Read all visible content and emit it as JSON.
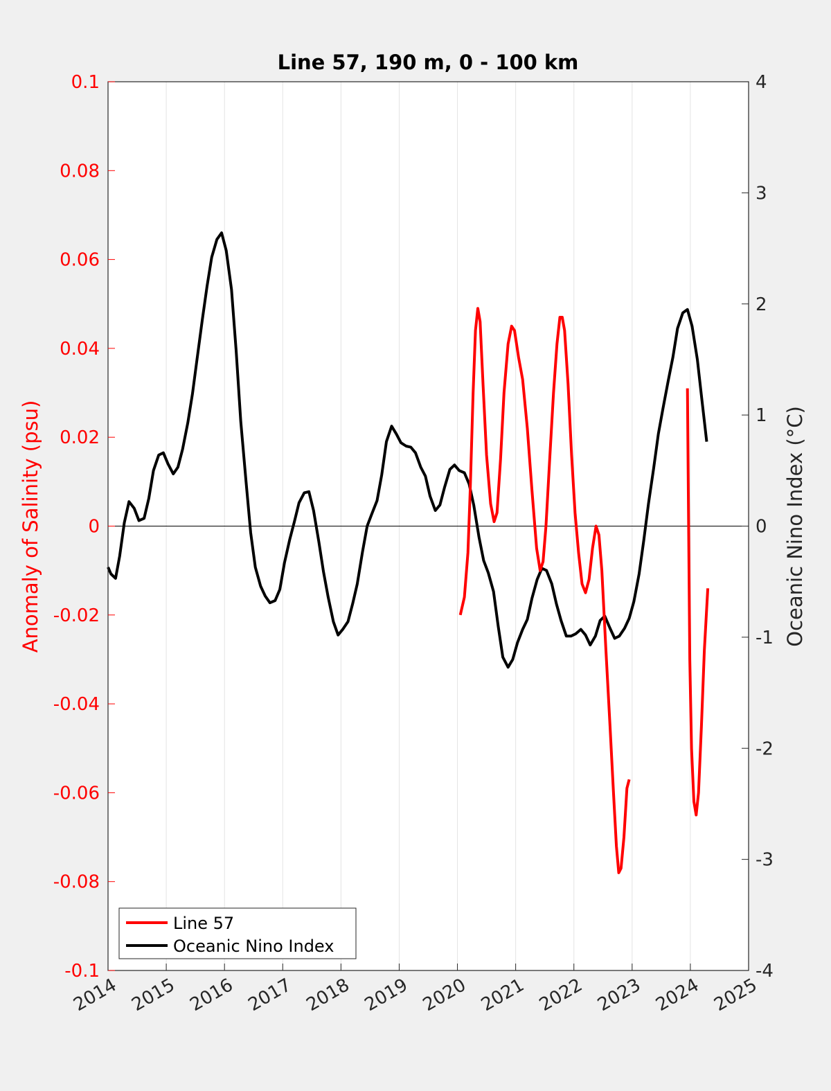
{
  "chart_data": {
    "type": "line",
    "title": "Line 57, 190 m, 0 - 100 km",
    "xlim": [
      2014,
      2025
    ],
    "x_ticks": [
      "2014",
      "2015",
      "2016",
      "2017",
      "2018",
      "2019",
      "2020",
      "2021",
      "2022",
      "2023",
      "2024",
      "2025"
    ],
    "left_axis": {
      "label": "Anomaly of Salinity (psu)",
      "color": "#ff0000",
      "ylim": [
        -0.1,
        0.1
      ],
      "ticks": [
        "0.1",
        "0.08",
        "0.06",
        "0.04",
        "0.02",
        "0",
        "-0.02",
        "-0.04",
        "-0.06",
        "-0.08",
        "-0.1"
      ]
    },
    "right_axis": {
      "label": "Oceanic Nino Index (°C)",
      "color": "#000000",
      "ylim": [
        -4,
        4
      ],
      "ticks": [
        "4",
        "3",
        "2",
        "1",
        "0",
        "-1",
        "-2",
        "-3",
        "-4"
      ]
    },
    "grid": "vertical",
    "legend": {
      "position": "bottom-left"
    },
    "series": [
      {
        "name": "Line 57",
        "axis": "left",
        "color": "#ff0000",
        "segments": [
          [
            [
              2020.05,
              -0.02
            ],
            [
              2020.12,
              -0.016
            ],
            [
              2020.18,
              -0.006
            ],
            [
              2020.22,
              0.008
            ],
            [
              2020.27,
              0.03
            ],
            [
              2020.31,
              0.044
            ],
            [
              2020.35,
              0.049
            ],
            [
              2020.39,
              0.046
            ],
            [
              2020.44,
              0.032
            ],
            [
              2020.5,
              0.016
            ],
            [
              2020.57,
              0.005
            ],
            [
              2020.63,
              0.001
            ],
            [
              2020.68,
              0.003
            ],
            [
              2020.74,
              0.015
            ],
            [
              2020.8,
              0.03
            ],
            [
              2020.87,
              0.041
            ],
            [
              2020.93,
              0.045
            ],
            [
              2020.98,
              0.044
            ],
            [
              2021.05,
              0.038
            ],
            [
              2021.12,
              0.033
            ],
            [
              2021.2,
              0.022
            ],
            [
              2021.28,
              0.008
            ],
            [
              2021.36,
              -0.005
            ],
            [
              2021.42,
              -0.01
            ],
            [
              2021.47,
              -0.008
            ],
            [
              2021.52,
              0.0
            ],
            [
              2021.58,
              0.014
            ],
            [
              2021.65,
              0.03
            ],
            [
              2021.71,
              0.041
            ],
            [
              2021.76,
              0.047
            ],
            [
              2021.8,
              0.047
            ],
            [
              2021.84,
              0.044
            ],
            [
              2021.9,
              0.032
            ],
            [
              2021.96,
              0.016
            ],
            [
              2022.02,
              0.003
            ],
            [
              2022.08,
              -0.006
            ],
            [
              2022.14,
              -0.013
            ],
            [
              2022.2,
              -0.015
            ],
            [
              2022.26,
              -0.012
            ],
            [
              2022.32,
              -0.005
            ],
            [
              2022.38,
              0.0
            ],
            [
              2022.43,
              -0.002
            ],
            [
              2022.48,
              -0.01
            ],
            [
              2022.55,
              -0.028
            ],
            [
              2022.62,
              -0.045
            ],
            [
              2022.68,
              -0.06
            ],
            [
              2022.73,
              -0.072
            ],
            [
              2022.77,
              -0.078
            ],
            [
              2022.81,
              -0.077
            ],
            [
              2022.86,
              -0.07
            ],
            [
              2022.91,
              -0.059
            ],
            [
              2022.95,
              -0.057
            ]
          ],
          [
            [
              2023.95,
              0.031
            ],
            [
              2023.97,
              0.0
            ],
            [
              2023.99,
              -0.03
            ],
            [
              2024.02,
              -0.05
            ],
            [
              2024.06,
              -0.062
            ],
            [
              2024.1,
              -0.065
            ],
            [
              2024.14,
              -0.06
            ],
            [
              2024.19,
              -0.045
            ],
            [
              2024.24,
              -0.028
            ],
            [
              2024.3,
              -0.014
            ]
          ]
        ]
      },
      {
        "name": "Oceanic Nino Index",
        "axis": "right",
        "color": "#000000",
        "segments": [
          [
            [
              2014.0,
              -0.37
            ],
            [
              2014.05,
              -0.43
            ],
            [
              2014.13,
              -0.47
            ],
            [
              2014.2,
              -0.27
            ],
            [
              2014.28,
              0.03
            ],
            [
              2014.36,
              0.22
            ],
            [
              2014.45,
              0.16
            ],
            [
              2014.53,
              0.05
            ],
            [
              2014.62,
              0.07
            ],
            [
              2014.7,
              0.25
            ],
            [
              2014.78,
              0.5
            ],
            [
              2014.87,
              0.64
            ],
            [
              2014.95,
              0.66
            ],
            [
              2015.03,
              0.56
            ],
            [
              2015.12,
              0.47
            ],
            [
              2015.2,
              0.53
            ],
            [
              2015.28,
              0.69
            ],
            [
              2015.37,
              0.93
            ],
            [
              2015.45,
              1.19
            ],
            [
              2015.53,
              1.51
            ],
            [
              2015.62,
              1.86
            ],
            [
              2015.7,
              2.16
            ],
            [
              2015.78,
              2.42
            ],
            [
              2015.87,
              2.58
            ],
            [
              2015.95,
              2.64
            ],
            [
              2016.03,
              2.48
            ],
            [
              2016.12,
              2.13
            ],
            [
              2016.2,
              1.58
            ],
            [
              2016.28,
              0.94
            ],
            [
              2016.37,
              0.4
            ],
            [
              2016.45,
              -0.06
            ],
            [
              2016.53,
              -0.37
            ],
            [
              2016.62,
              -0.54
            ],
            [
              2016.7,
              -0.63
            ],
            [
              2016.78,
              -0.69
            ],
            [
              2016.87,
              -0.67
            ],
            [
              2016.95,
              -0.57
            ],
            [
              2017.03,
              -0.33
            ],
            [
              2017.12,
              -0.12
            ],
            [
              2017.2,
              0.04
            ],
            [
              2017.28,
              0.21
            ],
            [
              2017.37,
              0.3
            ],
            [
              2017.45,
              0.31
            ],
            [
              2017.53,
              0.14
            ],
            [
              2017.62,
              -0.14
            ],
            [
              2017.7,
              -0.41
            ],
            [
              2017.78,
              -0.64
            ],
            [
              2017.87,
              -0.86
            ],
            [
              2017.95,
              -0.98
            ],
            [
              2018.03,
              -0.93
            ],
            [
              2018.12,
              -0.86
            ],
            [
              2018.2,
              -0.7
            ],
            [
              2018.28,
              -0.52
            ],
            [
              2018.37,
              -0.23
            ],
            [
              2018.45,
              0.0
            ],
            [
              2018.53,
              0.11
            ],
            [
              2018.62,
              0.23
            ],
            [
              2018.7,
              0.46
            ],
            [
              2018.78,
              0.76
            ],
            [
              2018.87,
              0.9
            ],
            [
              2018.95,
              0.83
            ],
            [
              2019.03,
              0.75
            ],
            [
              2019.12,
              0.72
            ],
            [
              2019.2,
              0.71
            ],
            [
              2019.28,
              0.66
            ],
            [
              2019.37,
              0.53
            ],
            [
              2019.45,
              0.45
            ],
            [
              2019.53,
              0.27
            ],
            [
              2019.62,
              0.14
            ],
            [
              2019.7,
              0.19
            ],
            [
              2019.78,
              0.35
            ],
            [
              2019.87,
              0.51
            ],
            [
              2019.95,
              0.55
            ],
            [
              2020.03,
              0.5
            ],
            [
              2020.12,
              0.48
            ],
            [
              2020.2,
              0.38
            ],
            [
              2020.28,
              0.19
            ],
            [
              2020.37,
              -0.1
            ],
            [
              2020.45,
              -0.31
            ],
            [
              2020.53,
              -0.42
            ],
            [
              2020.62,
              -0.59
            ],
            [
              2020.7,
              -0.9
            ],
            [
              2020.78,
              -1.18
            ],
            [
              2020.87,
              -1.27
            ],
            [
              2020.95,
              -1.2
            ],
            [
              2021.03,
              -1.05
            ],
            [
              2021.12,
              -0.93
            ],
            [
              2021.2,
              -0.84
            ],
            [
              2021.28,
              -0.65
            ],
            [
              2021.37,
              -0.48
            ],
            [
              2021.45,
              -0.38
            ],
            [
              2021.53,
              -0.4
            ],
            [
              2021.62,
              -0.52
            ],
            [
              2021.7,
              -0.7
            ],
            [
              2021.78,
              -0.85
            ],
            [
              2021.87,
              -0.99
            ],
            [
              2021.95,
              -0.99
            ],
            [
              2022.03,
              -0.97
            ],
            [
              2022.12,
              -0.93
            ],
            [
              2022.2,
              -0.98
            ],
            [
              2022.28,
              -1.07
            ],
            [
              2022.37,
              -0.99
            ],
            [
              2022.45,
              -0.85
            ],
            [
              2022.53,
              -0.81
            ],
            [
              2022.62,
              -0.92
            ],
            [
              2022.7,
              -1.01
            ],
            [
              2022.78,
              -0.99
            ],
            [
              2022.87,
              -0.92
            ],
            [
              2022.95,
              -0.83
            ],
            [
              2023.03,
              -0.68
            ],
            [
              2023.12,
              -0.43
            ],
            [
              2023.2,
              -0.13
            ],
            [
              2023.28,
              0.2
            ],
            [
              2023.37,
              0.52
            ],
            [
              2023.45,
              0.83
            ],
            [
              2023.53,
              1.06
            ],
            [
              2023.62,
              1.31
            ],
            [
              2023.7,
              1.52
            ],
            [
              2023.78,
              1.78
            ],
            [
              2023.87,
              1.92
            ],
            [
              2023.95,
              1.95
            ],
            [
              2024.03,
              1.8
            ],
            [
              2024.12,
              1.5
            ],
            [
              2024.2,
              1.13
            ],
            [
              2024.28,
              0.76
            ]
          ]
        ]
      }
    ]
  }
}
